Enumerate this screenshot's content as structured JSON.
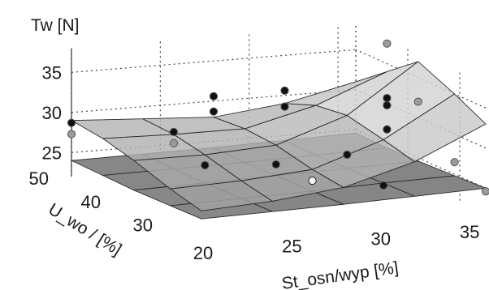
{
  "chart_data": {
    "type": "surface",
    "zlabel": "Tw [N]",
    "xlabel": "St_osn/wyp [%]",
    "ylabel": "U_wo / [%]",
    "x_ticks": [
      "20",
      "25",
      "30",
      "35"
    ],
    "y_ticks": [
      "30",
      "40",
      "50"
    ],
    "z_ticks": [
      "25",
      "30",
      "35"
    ],
    "x": [
      20,
      24,
      28,
      32,
      36
    ],
    "y": [
      25,
      31,
      38,
      44,
      50
    ],
    "xlim": [
      20,
      36
    ],
    "ylim": [
      25,
      50
    ],
    "zlim": [
      22,
      38
    ],
    "grid": true,
    "surfaces": [
      {
        "shade": "dark",
        "z": [
          [
            24.0,
            24.2,
            24.4,
            24.7,
            25.0
          ],
          [
            23.9,
            24.1,
            24.3,
            24.6,
            24.8
          ],
          [
            23.8,
            24.0,
            24.2,
            24.4,
            24.6
          ],
          [
            23.9,
            24.0,
            24.1,
            24.3,
            24.5
          ],
          [
            24.0,
            24.1,
            24.2,
            24.4,
            24.6
          ]
        ]
      },
      {
        "shade": "light",
        "z": [
          [
            25.0,
            25.5,
            26.5,
            29.0,
            33.0
          ],
          [
            26.0,
            26.3,
            27.0,
            30.0,
            35.0
          ],
          [
            27.5,
            27.5,
            28.0,
            31.0,
            37.0
          ],
          [
            28.5,
            28.3,
            28.3,
            30.5,
            34.0
          ],
          [
            29.0,
            28.5,
            28.0,
            29.0,
            31.0
          ]
        ]
      }
    ],
    "points": [
      {
        "x": 20,
        "y": 50,
        "z": 28.7,
        "color": "black"
      },
      {
        "x": 20,
        "y": 50,
        "z": 27.3,
        "color": "gray"
      },
      {
        "x": 24,
        "y": 44,
        "z": 28.6,
        "color": "black"
      },
      {
        "x": 24,
        "y": 44,
        "z": 27.2,
        "color": "gray"
      },
      {
        "x": 28,
        "y": 50,
        "z": 30.6,
        "color": "black"
      },
      {
        "x": 28,
        "y": 50,
        "z": 28.7,
        "color": "black"
      },
      {
        "x": 32,
        "y": 50,
        "z": 30.6,
        "color": "black"
      },
      {
        "x": 32,
        "y": 50,
        "z": 28.6,
        "color": "black"
      },
      {
        "x": 24,
        "y": 38,
        "z": 26.2,
        "color": "black"
      },
      {
        "x": 28,
        "y": 38,
        "z": 25.6,
        "color": "black"
      },
      {
        "x": 28,
        "y": 31,
        "z": 25.6,
        "color": "white"
      },
      {
        "x": 32,
        "y": 38,
        "z": 26.1,
        "color": "black"
      },
      {
        "x": 36,
        "y": 44,
        "z": 30.7,
        "color": "black"
      },
      {
        "x": 36,
        "y": 44,
        "z": 29.8,
        "color": "black"
      },
      {
        "x": 36,
        "y": 44,
        "z": 26.8,
        "color": "black"
      },
      {
        "x": 36,
        "y": 44,
        "z": 37.5,
        "color": "gray"
      },
      {
        "x": 36,
        "y": 38,
        "z": 32.0,
        "color": "gray"
      },
      {
        "x": 36,
        "y": 31,
        "z": 26.5,
        "color": "gray"
      },
      {
        "x": 32,
        "y": 31,
        "z": 24.3,
        "color": "black"
      },
      {
        "x": 36,
        "y": 25,
        "z": 24.6,
        "color": "gray"
      }
    ]
  }
}
